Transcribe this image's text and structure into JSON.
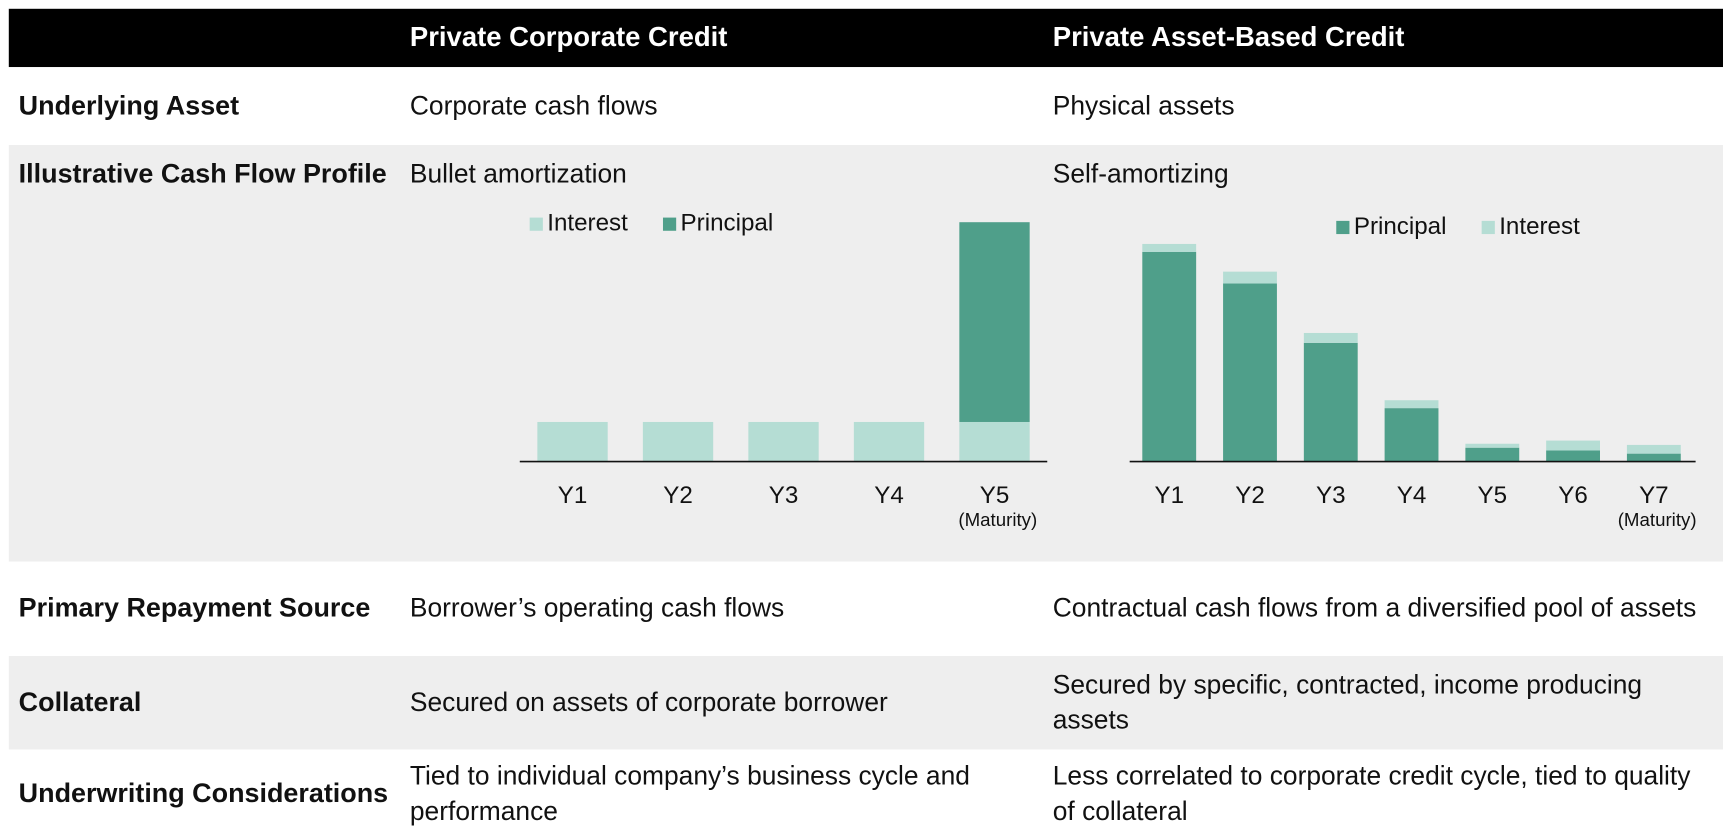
{
  "header": {
    "columns": [
      "Private Corporate Credit",
      "Private Asset-Based Credit"
    ]
  },
  "table": {
    "rows": [
      {
        "label": "Underlying Asset",
        "cells": [
          "Corporate cash flows",
          "Physical assets"
        ]
      },
      {
        "label": "Illustrative Cash Flow Profile",
        "cells": [
          "Bullet amortization",
          "Self-amortizing"
        ]
      },
      {
        "label": "Primary Repayment Source",
        "cells": [
          "Borrower’s operating cash flows",
          "Contractual cash flows from a diversified pool of assets"
        ]
      },
      {
        "label": "Collateral",
        "cells": [
          "Secured on assets of corporate borrower",
          "Secured by specific, contracted, income producing assets"
        ]
      },
      {
        "label": "Underwriting Considerations",
        "cells": [
          "Tied to individual company’s business cycle and performance",
          "Less correlated to corporate credit cycle, tied to quality of collateral"
        ]
      }
    ]
  },
  "chart_data": [
    {
      "type": "stacked_bar",
      "categories": [
        "Y1",
        "Y2",
        "Y3",
        "Y4",
        "Y5"
      ],
      "annotation": "(Maturity)",
      "ylim": [
        0,
        6
      ],
      "series": [
        {
          "name": "Interest",
          "color": "#b5ddd4",
          "values": [
            1,
            1,
            1,
            1,
            1
          ]
        },
        {
          "name": "Principal",
          "color": "#4f9f8a",
          "values": [
            0,
            0,
            0,
            0,
            5.05
          ]
        }
      ]
    },
    {
      "type": "stacked_bar",
      "categories": [
        "Y1",
        "Y2",
        "Y3",
        "Y4",
        "Y5",
        "Y6",
        "Y7"
      ],
      "annotation": "(Maturity)",
      "ylim": [
        0,
        6
      ],
      "series": [
        {
          "name": "Principal",
          "color": "#4f9f8a",
          "values": [
            5.3,
            4.5,
            3.0,
            1.35,
            0.35,
            0.28,
            0.2
          ]
        },
        {
          "name": "Interest",
          "color": "#b5ddd4",
          "values": [
            0.2,
            0.3,
            0.25,
            0.2,
            0.1,
            0.25,
            0.22
          ]
        }
      ]
    }
  ]
}
